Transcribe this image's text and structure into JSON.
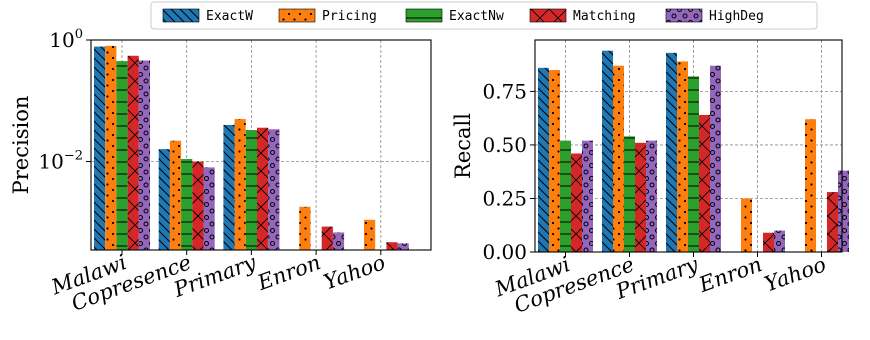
{
  "legend": {
    "position": "top-center",
    "entries": [
      {
        "label": "ExactW",
        "color": "#1f77b4",
        "pattern": "backslash"
      },
      {
        "label": "Pricing",
        "color": "#ff7f0e",
        "pattern": "dots"
      },
      {
        "label": "ExactNw",
        "color": "#2ca02c",
        "pattern": "horizontal"
      },
      {
        "label": "Matching",
        "color": "#d62728",
        "pattern": "cross"
      },
      {
        "label": "HighDeg",
        "color": "#9467bd",
        "pattern": "circles"
      }
    ]
  },
  "chart_data": [
    {
      "type": "bar",
      "title": "",
      "xlabel": "",
      "ylabel": "Precision",
      "yscale": "log",
      "ylim": [
        0.00035,
        1.0
      ],
      "yticks": [
        {
          "value": 1.0,
          "base": "10",
          "exp": "0"
        },
        {
          "value": 0.01,
          "base": "10",
          "exp": "−2"
        }
      ],
      "grid": true,
      "categories": [
        "Malawi",
        "Copresence",
        "Primary",
        "Enron",
        "Yahoo"
      ],
      "series": [
        {
          "name": "ExactW",
          "values": [
            0.78,
            0.016,
            0.04,
            null,
            null
          ]
        },
        {
          "name": "Pricing",
          "values": [
            0.8,
            0.022,
            0.05,
            0.0018,
            0.0011
          ]
        },
        {
          "name": "ExactNw",
          "values": [
            0.45,
            0.011,
            0.033,
            null,
            null
          ]
        },
        {
          "name": "Matching",
          "values": [
            0.55,
            0.01,
            0.036,
            0.00085,
            0.00047
          ]
        },
        {
          "name": "HighDeg",
          "values": [
            0.46,
            0.008,
            0.034,
            0.00068,
            0.00045
          ]
        }
      ]
    },
    {
      "type": "bar",
      "title": "",
      "xlabel": "",
      "ylabel": "Recall",
      "ylim": [
        0,
        0.99
      ],
      "yticks": [
        "0.00",
        "0.25",
        "0.50",
        "0.75"
      ],
      "grid": true,
      "categories": [
        "Malawi",
        "Copresence",
        "Primary",
        "Enron",
        "Yahoo"
      ],
      "series": [
        {
          "name": "ExactW",
          "values": [
            0.86,
            0.94,
            0.93,
            0.0,
            0.0
          ]
        },
        {
          "name": "Pricing",
          "values": [
            0.85,
            0.87,
            0.89,
            0.25,
            0.62
          ]
        },
        {
          "name": "ExactNw",
          "values": [
            0.52,
            0.54,
            0.82,
            0.0,
            0.0
          ]
        },
        {
          "name": "Matching",
          "values": [
            0.46,
            0.51,
            0.64,
            0.09,
            0.28
          ]
        },
        {
          "name": "HighDeg",
          "values": [
            0.52,
            0.52,
            0.87,
            0.1,
            0.38
          ]
        }
      ]
    }
  ]
}
